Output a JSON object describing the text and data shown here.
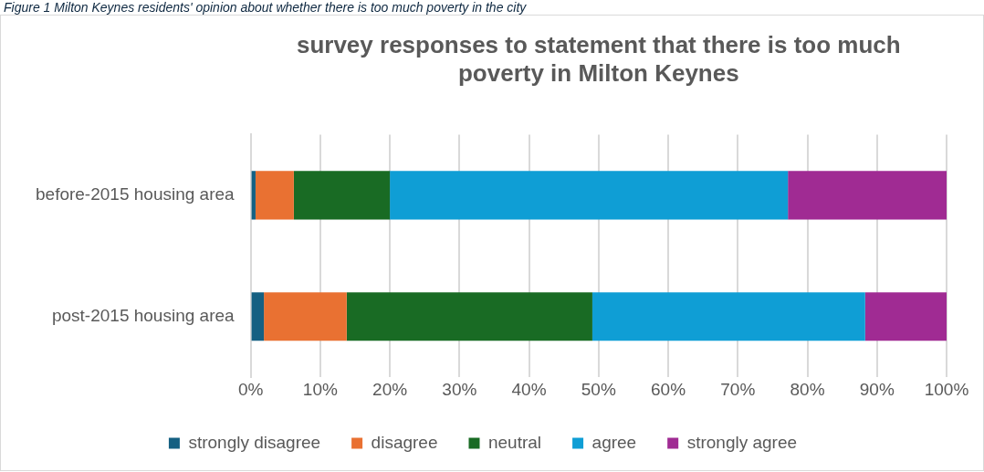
{
  "chart_data": {
    "type": "bar",
    "orientation": "horizontal",
    "stacked": true,
    "title": "survey responses to statement that there is too much poverty in Milton Keynes",
    "annotations": [
      "Figure 1 Milton Keynes residents' opinion about whether there is too much poverty in the city"
    ],
    "categories": [
      "before-2015 housing area",
      "post-2015 housing area"
    ],
    "series": [
      {
        "name": "strongly disagree",
        "color": "#156082",
        "values": [
          0.7,
          1.9
        ]
      },
      {
        "name": "disagree",
        "color": "#e97132",
        "values": [
          5.5,
          11.9
        ]
      },
      {
        "name": "neutral",
        "color": "#196b24",
        "values": [
          13.8,
          35.3
        ]
      },
      {
        "name": "agree",
        "color": "#0f9ed5",
        "values": [
          57.2,
          39.2
        ]
      },
      {
        "name": "strongly agree",
        "color": "#a02b93",
        "values": [
          22.8,
          11.7
        ]
      }
    ],
    "xlim": [
      0,
      100
    ],
    "xticks": [
      {
        "value": 0,
        "label": "0%"
      },
      {
        "value": 10,
        "label": "10%"
      },
      {
        "value": 20,
        "label": "20%"
      },
      {
        "value": 30,
        "label": "30%"
      },
      {
        "value": 40,
        "label": "40%"
      },
      {
        "value": 50,
        "label": "50%"
      },
      {
        "value": 60,
        "label": "60%"
      },
      {
        "value": 70,
        "label": "70%"
      },
      {
        "value": 80,
        "label": "80%"
      },
      {
        "value": 90,
        "label": "90%"
      },
      {
        "value": 100,
        "label": "100%"
      }
    ],
    "grid": "x",
    "legend": "bottom"
  }
}
